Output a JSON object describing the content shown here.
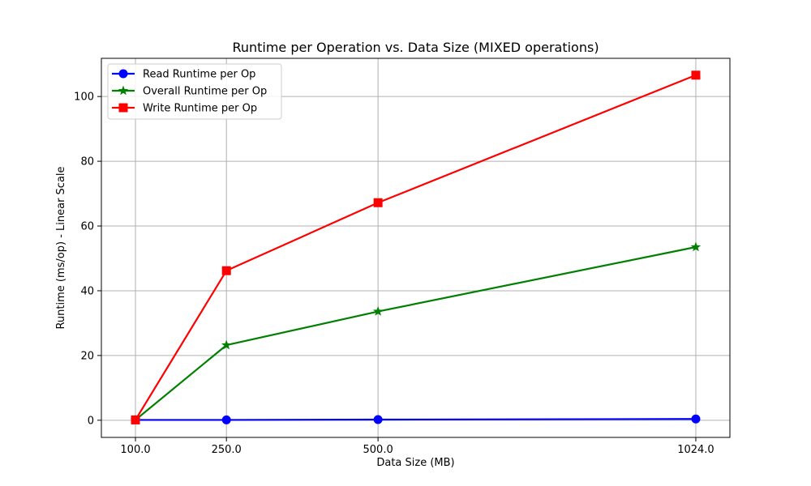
{
  "chart_data": {
    "type": "line",
    "title": "Runtime per Operation vs. Data Size (MIXED operations)",
    "xlabel": "Data Size (MB)",
    "ylabel": "Runtime (ms/op) - Linear Scale",
    "x": [
      100.0,
      250.0,
      500.0,
      1024.0
    ],
    "x_tick_labels": [
      "100.0",
      "250.0",
      "500.0",
      "1024.0"
    ],
    "xlim": [
      43.8,
      1080.2
    ],
    "ylim": [
      -5.3,
      111.8
    ],
    "y_ticks": [
      0,
      20,
      40,
      60,
      80,
      100
    ],
    "grid": true,
    "legend_position": "top-left",
    "series": [
      {
        "name": "Read Runtime per Op",
        "values": [
          0.1,
          0.1,
          0.2,
          0.4
        ],
        "color": "#0000ff",
        "marker": "circle"
      },
      {
        "name": "Overall Runtime per Op",
        "values": [
          0.1,
          23.2,
          33.6,
          53.5
        ],
        "color": "#008000",
        "marker": "star"
      },
      {
        "name": "Write Runtime per Op",
        "values": [
          0.1,
          46.2,
          67.2,
          106.6
        ],
        "color": "#ff0000",
        "marker": "square"
      }
    ]
  }
}
